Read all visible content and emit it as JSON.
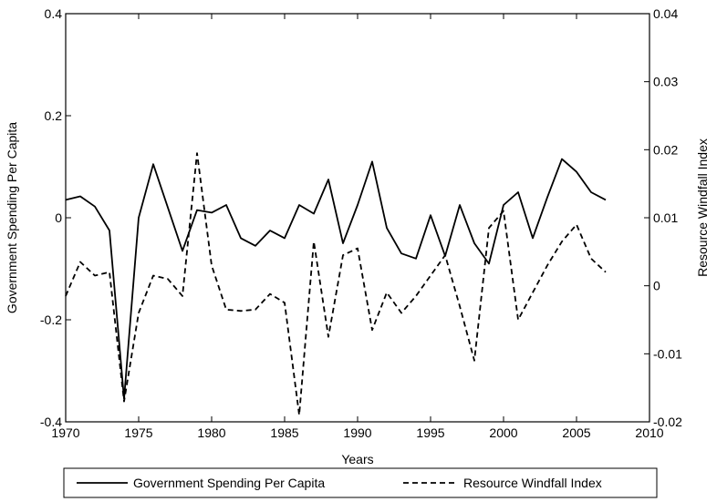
{
  "chart_data": {
    "type": "line",
    "title": "",
    "xlabel": "Years",
    "ylabel": "Government Spending Per Capita",
    "y2label": "Resource Windfall Index",
    "xlim": [
      1970,
      2010
    ],
    "ylim": [
      -0.4,
      0.4
    ],
    "y2lim": [
      -0.02,
      0.04
    ],
    "x_ticks": [
      "1970",
      "1975",
      "1980",
      "1985",
      "1990",
      "1995",
      "2000",
      "2005",
      "2010"
    ],
    "y_ticks": [
      "-0.4",
      "-0.2",
      "0",
      "0.2",
      "0.4"
    ],
    "y2_ticks": [
      "-0.02",
      "-0.01",
      "0",
      "0.01",
      "0.02",
      "0.03",
      "0.04"
    ],
    "grid": false,
    "legend_position": "bottom",
    "x": [
      1970,
      1971,
      1972,
      1973,
      1974,
      1975,
      1976,
      1977,
      1978,
      1979,
      1980,
      1981,
      1982,
      1983,
      1984,
      1985,
      1986,
      1987,
      1988,
      1989,
      1990,
      1991,
      1992,
      1993,
      1994,
      1995,
      1996,
      1997,
      1998,
      1999,
      2000,
      2001,
      2002,
      2003,
      2004,
      2005,
      2006,
      2007
    ],
    "series": [
      {
        "name": "Government Spending Per Capita",
        "axis": "left",
        "style": "solid",
        "values": [
          0.035,
          0.042,
          0.022,
          -0.025,
          -0.355,
          0.0,
          0.105,
          0.02,
          -0.065,
          0.015,
          0.01,
          0.025,
          -0.04,
          -0.055,
          -0.025,
          -0.04,
          0.025,
          0.008,
          0.075,
          -0.05,
          0.025,
          0.11,
          -0.02,
          -0.07,
          -0.08,
          0.005,
          -0.075,
          0.025,
          -0.05,
          -0.09,
          0.025,
          0.05,
          -0.04,
          0.04,
          0.115,
          0.09,
          0.05,
          0.035
        ]
      },
      {
        "name": "Resource Windfall Index",
        "axis": "right",
        "style": "dashed",
        "values": [
          -0.0015,
          0.0035,
          0.0015,
          0.002,
          -0.017,
          -0.004,
          0.0015,
          0.001,
          -0.0015,
          0.0195,
          0.003,
          -0.0035,
          -0.0037,
          -0.0035,
          -0.0012,
          -0.0025,
          -0.019,
          0.0065,
          -0.0075,
          0.0045,
          0.0055,
          -0.0065,
          -0.001,
          -0.004,
          -0.0015,
          0.0015,
          0.0045,
          -0.003,
          -0.011,
          0.0085,
          0.011,
          -0.005,
          -0.001,
          0.003,
          0.0065,
          0.009,
          0.004,
          0.002
        ]
      }
    ]
  }
}
